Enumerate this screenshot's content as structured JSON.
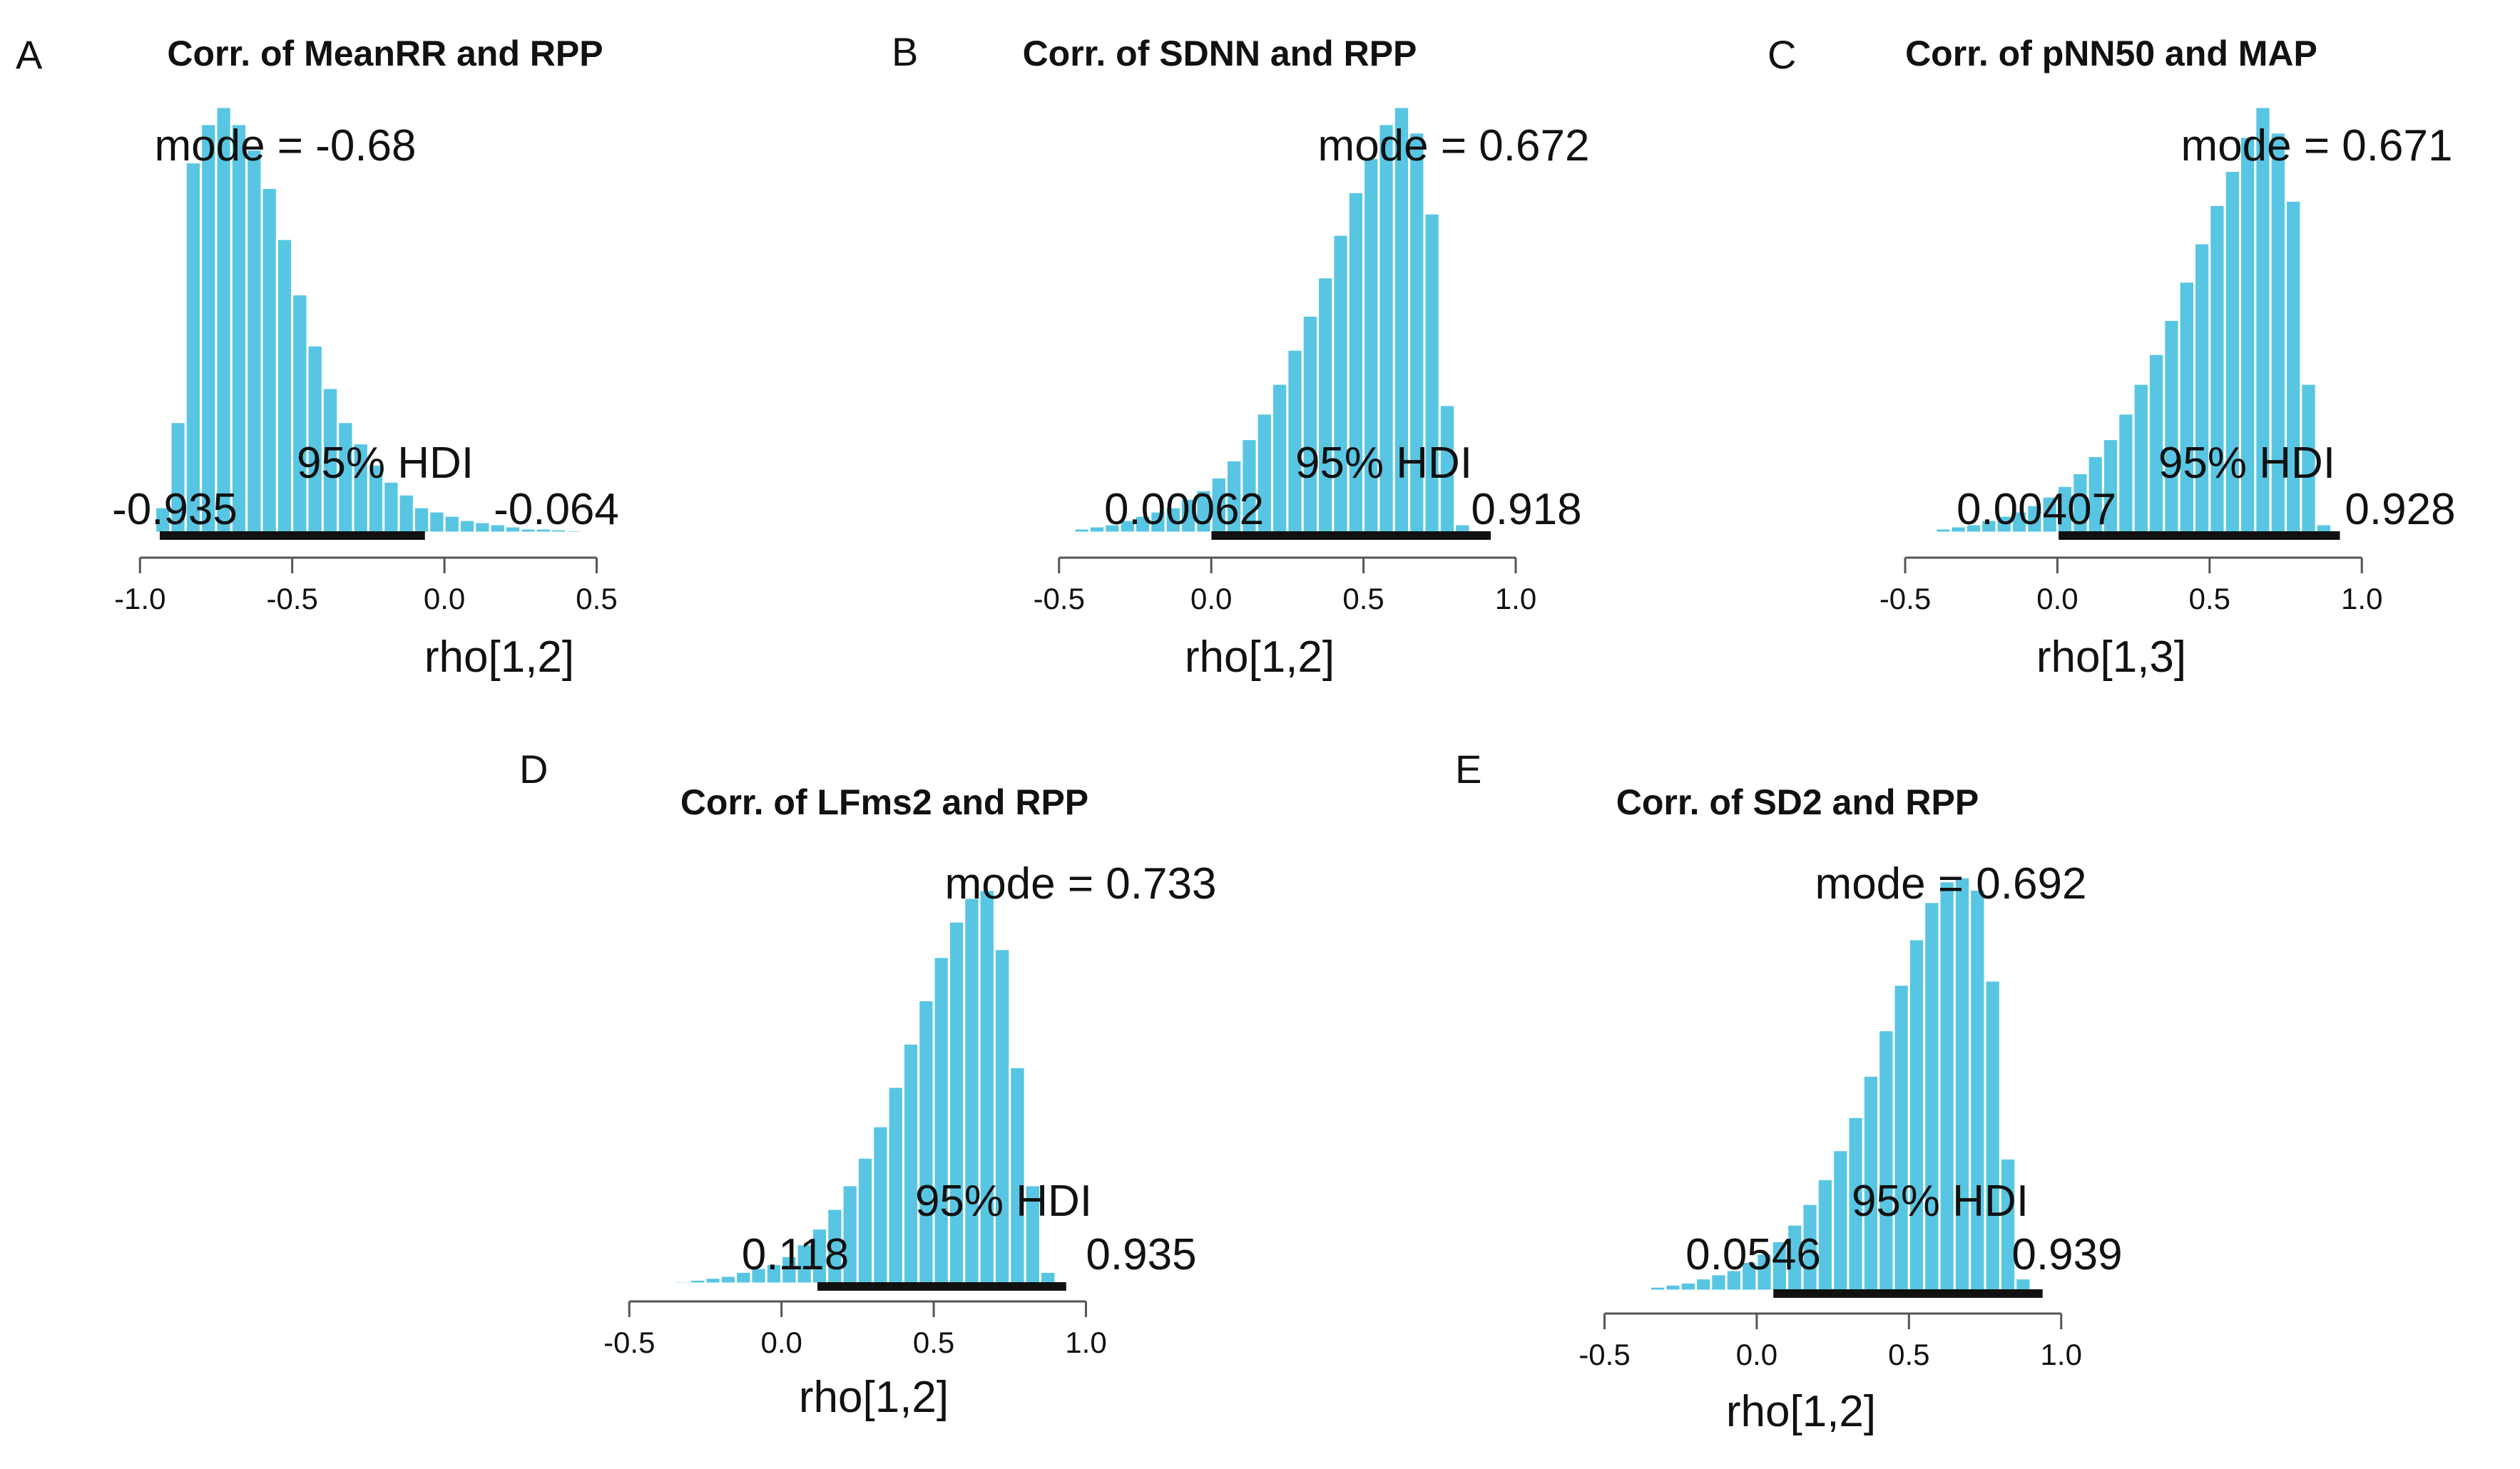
{
  "panels": [
    {
      "letter": "A"
    },
    {
      "letter": "B"
    },
    {
      "letter": "C"
    },
    {
      "letter": "D"
    },
    {
      "letter": "E"
    }
  ],
  "chart_data": [
    {
      "type": "bar",
      "title": "Corr. of MeanRR and RPP",
      "xlabel": "rho[1,2]",
      "xlim": [
        -1.0,
        0.5
      ],
      "xticks": [
        "-1.0",
        "-0.5",
        "0.0",
        "0.5"
      ],
      "mode_label": "mode = -0.68",
      "hdi_label": "95% HDI",
      "hdi": [
        -0.935,
        -0.064
      ],
      "hdi_low_label": "-0.935",
      "hdi_high_label": "-0.064",
      "bin_start": -0.95,
      "bin_width": 0.05,
      "values": [
        0.06,
        0.26,
        0.87,
        0.96,
        1.0,
        0.96,
        0.9,
        0.81,
        0.69,
        0.56,
        0.44,
        0.34,
        0.26,
        0.21,
        0.16,
        0.12,
        0.09,
        0.06,
        0.05,
        0.04,
        0.03,
        0.025,
        0.02,
        0.015,
        0.01,
        0.01,
        0.008,
        0.006,
        0.005
      ]
    },
    {
      "type": "bar",
      "title": "Corr. of SDNN and RPP",
      "xlabel": "rho[1,2]",
      "xlim": [
        -0.5,
        1.0
      ],
      "xticks": [
        "-0.5",
        "0.0",
        "0.5",
        "1.0"
      ],
      "mode_label": "mode = 0.672",
      "hdi_label": "95% HDI",
      "hdi": [
        0.00062,
        0.918
      ],
      "hdi_low_label": "0.00062",
      "hdi_high_label": "0.918",
      "bin_start": -0.45,
      "bin_width": 0.05,
      "values": [
        0.01,
        0.015,
        0.02,
        0.03,
        0.04,
        0.05,
        0.06,
        0.08,
        0.1,
        0.13,
        0.17,
        0.22,
        0.28,
        0.35,
        0.43,
        0.51,
        0.6,
        0.7,
        0.8,
        0.88,
        0.96,
        1.0,
        0.94,
        0.75,
        0.3,
        0.02
      ]
    },
    {
      "type": "bar",
      "title": "Corr. of pNN50 and MAP",
      "xlabel": "rho[1,3]",
      "xlim": [
        -0.5,
        1.0
      ],
      "xticks": [
        "-0.5",
        "0.0",
        "0.5",
        "1.0"
      ],
      "mode_label": "mode = 0.671",
      "hdi_label": "95% HDI",
      "hdi": [
        0.00407,
        0.928
      ],
      "hdi_low_label": "0.00407",
      "hdi_high_label": "0.928",
      "bin_start": -0.4,
      "bin_width": 0.05,
      "values": [
        0.01,
        0.015,
        0.02,
        0.03,
        0.04,
        0.05,
        0.065,
        0.085,
        0.11,
        0.14,
        0.18,
        0.22,
        0.28,
        0.35,
        0.42,
        0.5,
        0.59,
        0.68,
        0.77,
        0.85,
        0.93,
        1.0,
        0.94,
        0.78,
        0.35,
        0.02
      ]
    },
    {
      "type": "bar",
      "title": "Corr. of LFms2 and RPP",
      "xlabel": "rho[1,2]",
      "xlim": [
        -0.5,
        1.0
      ],
      "xticks": [
        "-0.5",
        "0.0",
        "0.5",
        "1.0"
      ],
      "mode_label": "mode = 0.733",
      "hdi_label": "95% HDI",
      "hdi": [
        0.118,
        0.935
      ],
      "hdi_low_label": "0.118",
      "hdi_high_label": "0.935",
      "bin_start": -0.35,
      "bin_width": 0.05,
      "values": [
        0.006,
        0.01,
        0.015,
        0.02,
        0.03,
        0.04,
        0.05,
        0.07,
        0.1,
        0.14,
        0.19,
        0.25,
        0.32,
        0.4,
        0.5,
        0.61,
        0.72,
        0.83,
        0.92,
        0.98,
        1.0,
        0.85,
        0.55,
        0.25,
        0.03
      ]
    },
    {
      "type": "bar",
      "title": "Corr. of SD2 and RPP",
      "xlabel": "rho[1,2]",
      "xlim": [
        -0.5,
        1.0
      ],
      "xticks": [
        "-0.5",
        "0.0",
        "0.5",
        "1.0"
      ],
      "mode_label": "mode = 0.692",
      "hdi_label": "95% HDI",
      "hdi": [
        0.0546,
        0.939
      ],
      "hdi_low_label": "0.0546",
      "hdi_high_label": "0.939",
      "bin_start": -0.35,
      "bin_width": 0.05,
      "values": [
        0.01,
        0.015,
        0.02,
        0.03,
        0.04,
        0.05,
        0.07,
        0.09,
        0.12,
        0.16,
        0.21,
        0.27,
        0.34,
        0.42,
        0.52,
        0.63,
        0.74,
        0.85,
        0.94,
        0.99,
        1.0,
        0.97,
        0.75,
        0.32,
        0.03
      ]
    }
  ]
}
